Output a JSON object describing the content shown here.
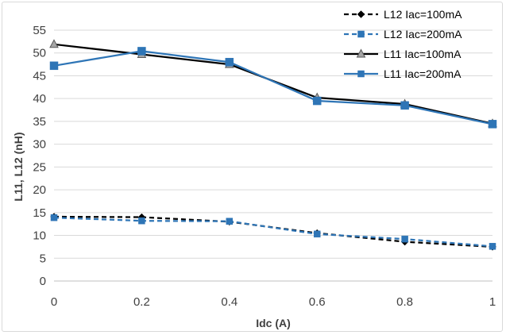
{
  "chart_data": {
    "type": "line",
    "title": "",
    "xlabel": "Idc (A)",
    "ylabel": "L11, L12 (nH)",
    "x": [
      0,
      0.2,
      0.4,
      0.6,
      0.8,
      1
    ],
    "x_ticks": [
      "0",
      "0.2",
      "0.4",
      "0.6",
      "0.8",
      "1"
    ],
    "xlim": [
      0,
      1
    ],
    "y_ticks": [
      "0",
      "5",
      "10",
      "15",
      "20",
      "25",
      "30",
      "35",
      "40",
      "45",
      "50",
      "55"
    ],
    "ylim": [
      0,
      55
    ],
    "grid": "horizontal",
    "legend_position": "top-right",
    "series": [
      {
        "name": "L12 Iac=100mA",
        "values": [
          14.1,
          14.0,
          13.0,
          10.5,
          8.6,
          7.5
        ],
        "color": "#000000",
        "dash": true,
        "marker": "diamond"
      },
      {
        "name": "L12 Iac=200mA",
        "values": [
          13.9,
          13.2,
          13.1,
          10.3,
          9.2,
          7.6
        ],
        "color": "#2e75b6",
        "dash": true,
        "marker": "square"
      },
      {
        "name": "L11 Iac=100mA",
        "values": [
          51.9,
          49.7,
          47.5,
          40.2,
          38.8,
          34.5
        ],
        "color": "#000000",
        "dash": false,
        "marker": "triangle"
      },
      {
        "name": "L11 Iac=200mA",
        "values": [
          47.2,
          50.4,
          48.0,
          39.5,
          38.5,
          34.4
        ],
        "color": "#2e75b6",
        "dash": false,
        "marker": "square"
      }
    ]
  }
}
